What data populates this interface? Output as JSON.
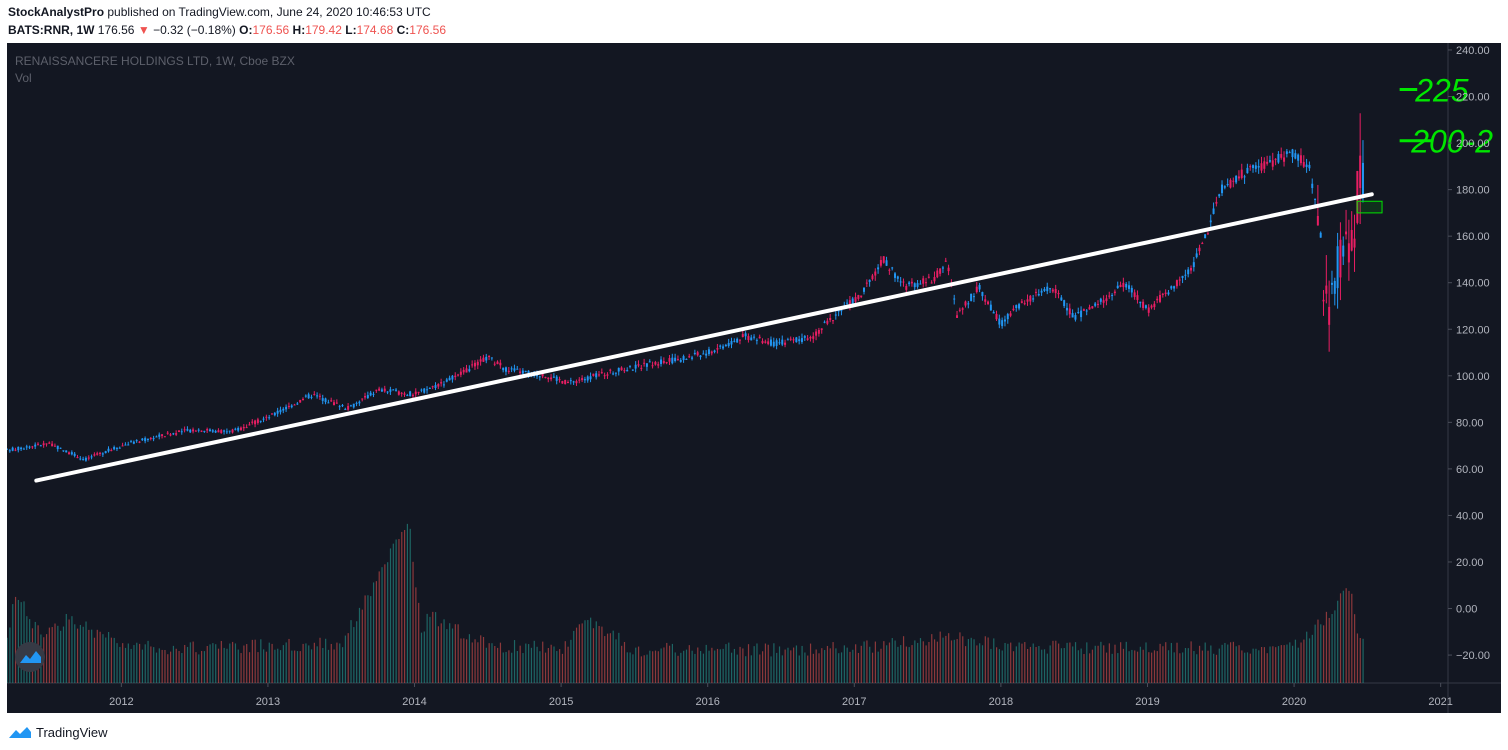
{
  "header": {
    "author": "StockAnalystPro",
    "published_text": "published on TradingView.com, June 24, 2020 10:46:53 UTC",
    "symbol": "BATS:RNR, 1W",
    "last": "176.56",
    "arrow": "▼",
    "change": "−0.32 (−0.18%)",
    "o_label": "O:",
    "o_value": "176.56",
    "h_label": "H:",
    "h_value": "179.42",
    "l_label": "L:",
    "l_value": "174.68",
    "c_label": "C:",
    "c_value": "176.56"
  },
  "legend": {
    "title": "RENAISSANCERE HOLDINGS LTD, 1W, Cboe BZX",
    "volume_label": "Vol"
  },
  "annotations": {
    "target_high": "225",
    "target_low": "200-2"
  },
  "footer": {
    "brand": "TradingView"
  },
  "colors": {
    "background": "#131722",
    "up": "#2196f3",
    "down": "#e91e63",
    "trendline": "#ffffff",
    "annotation": "#00e600",
    "axis_text": "#b2b5be"
  },
  "chart_data": {
    "type": "candlestick",
    "timeframe": "1W",
    "x_labels": [
      "2012",
      "2013",
      "2014",
      "2015",
      "2016",
      "2017",
      "2018",
      "2019",
      "2020",
      "2021"
    ],
    "y_ticks": [
      "240.00",
      "220.00",
      "200.00",
      "180.00",
      "160.00",
      "140.00",
      "120.00",
      "100.00",
      "80.00",
      "60.00",
      "40.00",
      "20.00",
      "0.00",
      "−20.00"
    ],
    "ylim": [
      -32,
      243
    ],
    "xlim": [
      2011.22,
      2021.05
    ],
    "price_anchors": [
      [
        2011.22,
        68
      ],
      [
        2011.5,
        71
      ],
      [
        2011.75,
        64
      ],
      [
        2012.0,
        70
      ],
      [
        2012.25,
        74
      ],
      [
        2012.5,
        77
      ],
      [
        2012.75,
        76
      ],
      [
        2013.0,
        82
      ],
      [
        2013.3,
        92
      ],
      [
        2013.55,
        86
      ],
      [
        2013.75,
        94
      ],
      [
        2014.0,
        92
      ],
      [
        2014.3,
        100
      ],
      [
        2014.5,
        108
      ],
      [
        2014.62,
        103
      ],
      [
        2014.9,
        100
      ],
      [
        2015.05,
        97
      ],
      [
        2015.3,
        101
      ],
      [
        2015.6,
        105
      ],
      [
        2015.8,
        107
      ],
      [
        2016.0,
        110
      ],
      [
        2016.25,
        117
      ],
      [
        2016.45,
        114
      ],
      [
        2016.7,
        116
      ],
      [
        2016.9,
        128
      ],
      [
        2017.05,
        135
      ],
      [
        2017.2,
        150
      ],
      [
        2017.35,
        138
      ],
      [
        2017.55,
        142
      ],
      [
        2017.63,
        150
      ],
      [
        2017.7,
        126
      ],
      [
        2017.85,
        138
      ],
      [
        2018.0,
        122
      ],
      [
        2018.15,
        132
      ],
      [
        2018.35,
        138
      ],
      [
        2018.5,
        125
      ],
      [
        2018.65,
        130
      ],
      [
        2018.85,
        140
      ],
      [
        2019.0,
        128
      ],
      [
        2019.15,
        137
      ],
      [
        2019.3,
        146
      ],
      [
        2019.4,
        160
      ],
      [
        2019.5,
        180
      ],
      [
        2019.65,
        187
      ],
      [
        2019.85,
        192
      ],
      [
        2020.0,
        196
      ],
      [
        2020.1,
        190
      ],
      [
        2020.15,
        175
      ],
      [
        2020.2,
        142
      ],
      [
        2020.24,
        125
      ],
      [
        2020.28,
        140
      ],
      [
        2020.33,
        158
      ],
      [
        2020.37,
        150
      ],
      [
        2020.42,
        168
      ],
      [
        2020.46,
        195
      ],
      [
        2020.48,
        176.56
      ]
    ],
    "volume_anchors": [
      [
        2011.22,
        -15
      ],
      [
        2011.27,
        7
      ],
      [
        2011.45,
        -12
      ],
      [
        2011.65,
        -4
      ],
      [
        2012.0,
        -16
      ],
      [
        2012.5,
        -17
      ],
      [
        2013.0,
        -16
      ],
      [
        2013.5,
        -15
      ],
      [
        2013.96,
        37
      ],
      [
        2014.05,
        -10
      ],
      [
        2014.1,
        -3
      ],
      [
        2014.5,
        -16
      ],
      [
        2015.0,
        -17
      ],
      [
        2015.2,
        -5
      ],
      [
        2015.5,
        -18
      ],
      [
        2016.0,
        -17
      ],
      [
        2016.5,
        -18
      ],
      [
        2017.0,
        -17
      ],
      [
        2017.63,
        -12
      ],
      [
        2018.0,
        -16
      ],
      [
        2018.5,
        -17
      ],
      [
        2019.0,
        -17
      ],
      [
        2019.5,
        -17
      ],
      [
        2020.0,
        -16
      ],
      [
        2020.21,
        -5
      ],
      [
        2020.38,
        11
      ],
      [
        2020.45,
        -15
      ]
    ],
    "trendline": {
      "from": [
        2011.42,
        55
      ],
      "to": [
        2020.53,
        178
      ]
    },
    "target_levels": [
      225,
      200
    ],
    "entry_zone": {
      "from_x": 2020.43,
      "to_x": 2020.6,
      "y_low": 170,
      "y_high": 175
    },
    "last_price": 176.56
  }
}
